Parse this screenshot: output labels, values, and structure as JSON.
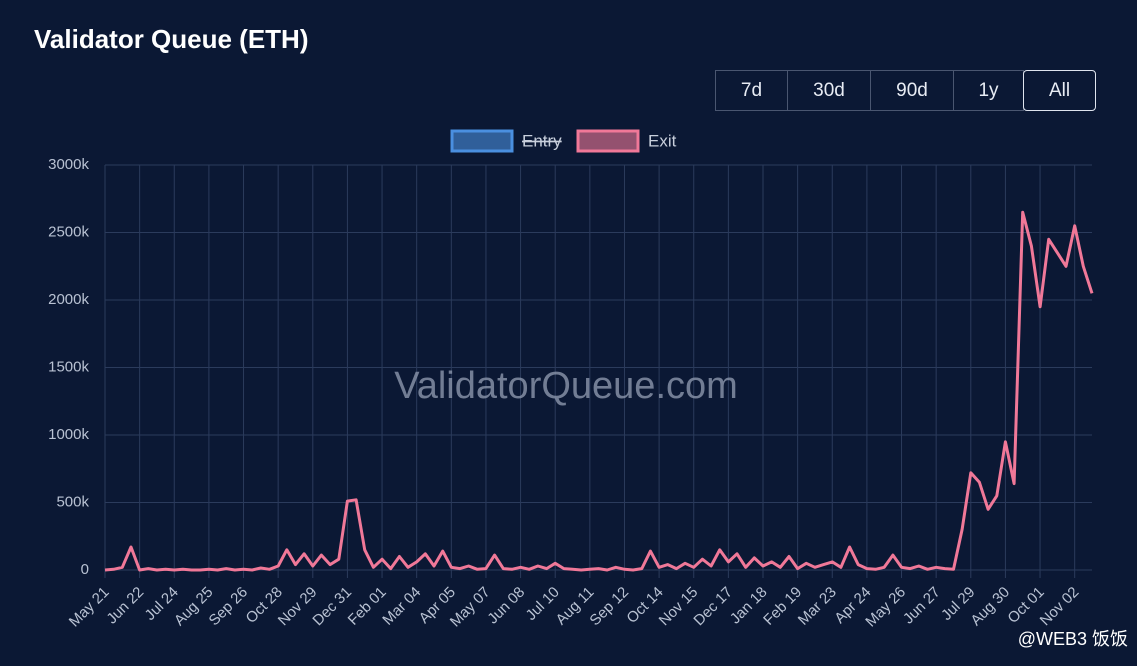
{
  "title": "Validator Queue (ETH)",
  "range_buttons": [
    {
      "label": "7d"
    },
    {
      "label": "30d"
    },
    {
      "label": "90d"
    },
    {
      "label": "1y"
    },
    {
      "label": "All",
      "selected": true
    }
  ],
  "watermark": "ValidatorQueue.com",
  "credit": "@WEB3 饭饭",
  "chart_data": {
    "type": "line",
    "hidden_series": [
      {
        "name": "Entry",
        "color": "#4a8fe0"
      }
    ],
    "series": [
      {
        "name": "Exit",
        "color": "#f07898",
        "values": [
          0,
          5000,
          20000,
          170000,
          0,
          10000,
          0,
          5000,
          0,
          5000,
          0,
          0,
          5000,
          0,
          10000,
          0,
          5000,
          0,
          15000,
          5000,
          30000,
          150000,
          40000,
          120000,
          30000,
          110000,
          40000,
          80000,
          510000,
          520000,
          150000,
          20000,
          80000,
          10000,
          100000,
          20000,
          60000,
          120000,
          30000,
          140000,
          20000,
          10000,
          30000,
          5000,
          10000,
          110000,
          10000,
          5000,
          20000,
          5000,
          30000,
          10000,
          50000,
          10000,
          5000,
          0,
          5000,
          10000,
          0,
          20000,
          5000,
          0,
          10000,
          140000,
          20000,
          40000,
          10000,
          50000,
          20000,
          80000,
          30000,
          150000,
          60000,
          120000,
          20000,
          90000,
          30000,
          60000,
          20000,
          100000,
          10000,
          50000,
          20000,
          40000,
          60000,
          20000,
          170000,
          40000,
          10000,
          5000,
          20000,
          110000,
          20000,
          10000,
          30000,
          5000,
          20000,
          10000,
          5000,
          300000,
          720000,
          650000,
          450000,
          550000,
          950000,
          640000,
          2650000,
          2400000,
          1950000,
          2450000,
          2350000,
          2250000,
          2550000,
          2250000,
          2050000
        ]
      }
    ],
    "categories": [
      "May 21",
      null,
      null,
      null,
      "Jun 22",
      null,
      null,
      null,
      "Jul 24",
      null,
      null,
      null,
      "Aug 25",
      null,
      null,
      null,
      "Sep 26",
      null,
      null,
      null,
      "Oct 28",
      null,
      null,
      null,
      "Nov 29",
      null,
      null,
      null,
      "Dec 31",
      null,
      null,
      null,
      "Feb 01",
      null,
      null,
      null,
      "Mar 04",
      null,
      null,
      null,
      "Apr 05",
      null,
      null,
      null,
      "May 07",
      null,
      null,
      null,
      "Jun 08",
      null,
      null,
      null,
      "Jul 10",
      null,
      null,
      null,
      "Aug 11",
      null,
      null,
      null,
      "Sep 12",
      null,
      null,
      null,
      "Oct 14",
      null,
      null,
      null,
      "Nov 15",
      null,
      null,
      null,
      "Dec 17",
      null,
      null,
      null,
      "Jan 18",
      null,
      null,
      null,
      "Feb 19",
      null,
      null,
      null,
      "Mar 23",
      null,
      null,
      null,
      "Apr 24",
      null,
      null,
      null,
      "May 26",
      null,
      null,
      null,
      "Jun 27",
      null,
      null,
      null,
      "Jul 29",
      null,
      null,
      null,
      "Aug 30",
      null,
      null,
      null,
      "Oct 01",
      null,
      null,
      null,
      "Nov 02",
      null,
      null
    ],
    "ylim": [
      0,
      3000000
    ],
    "yticks": [
      0,
      {
        "value": 500000,
        "label": "500k"
      },
      {
        "value": 1000000,
        "label": "1000k"
      },
      {
        "value": 1500000,
        "label": "1500k"
      },
      {
        "value": 2000000,
        "label": "2000k"
      },
      {
        "value": 2500000,
        "label": "2500k"
      },
      {
        "value": 3000000,
        "label": "3000k"
      }
    ],
    "grid": true
  }
}
